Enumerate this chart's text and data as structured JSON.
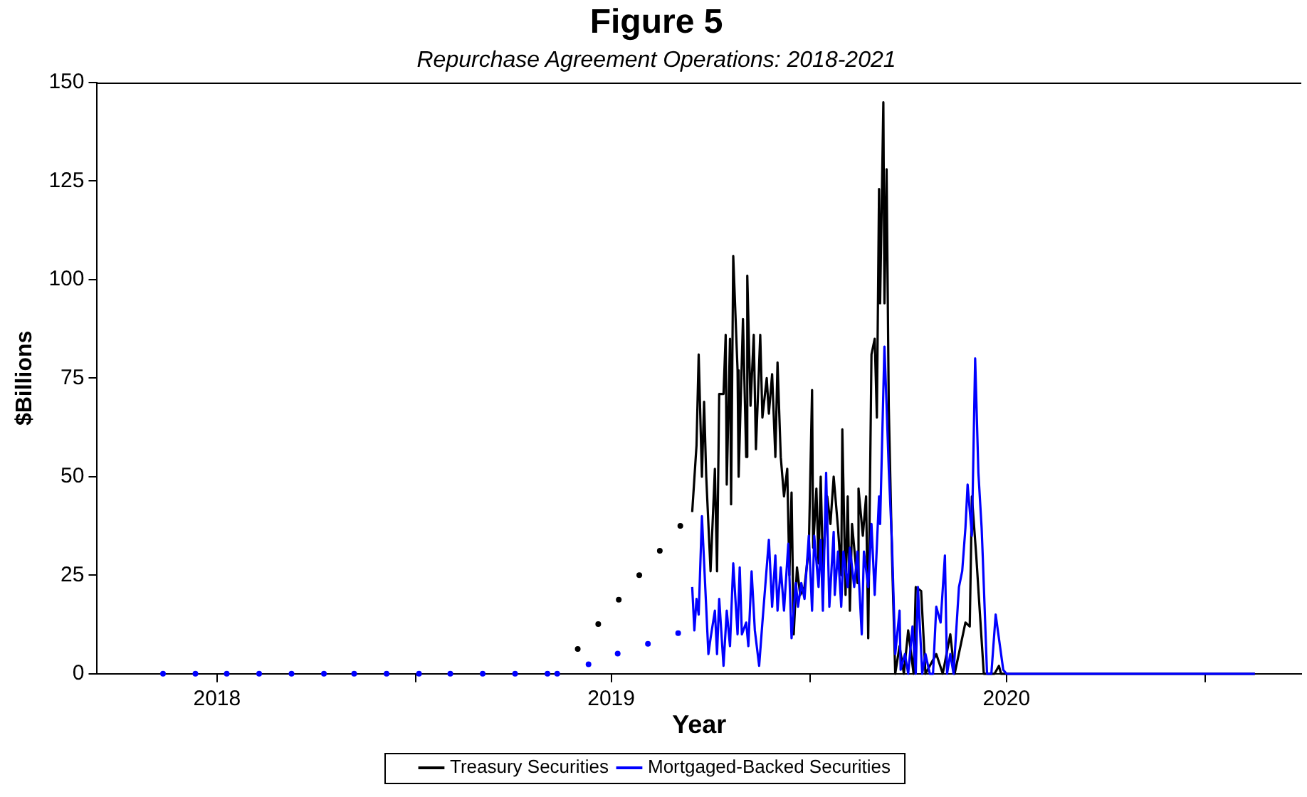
{
  "chart_data": {
    "type": "line",
    "title": "Figure 5",
    "subtitle": "Repurchase Agreement Operations: 2018-2021",
    "xlabel": "Year",
    "ylabel": "$Billions",
    "xlim": [
      "2018-03-12",
      "2021-03-31"
    ],
    "xticks": [
      {
        "value": "2018-07-01",
        "label": "2018"
      },
      {
        "value": "2019-01-01",
        "label": null
      },
      {
        "value": "2019-07-01",
        "label": "2019"
      },
      {
        "value": "2020-01-01",
        "label": null
      },
      {
        "value": "2020-07-01",
        "label": "2020"
      },
      {
        "value": "2021-01-01",
        "label": null
      }
    ],
    "ylim": [
      0,
      150
    ],
    "yticks": [
      0,
      25,
      50,
      75,
      100,
      125,
      150
    ],
    "grid": false,
    "legend": "bottom",
    "marker": "none",
    "line_style": "solid",
    "series": [
      {
        "type": "scatter",
        "marker": "circle",
        "color": "#000000",
        "x": [
          "2019-05-31",
          "2019-06-19",
          "2019-07-08",
          "2019-07-27",
          "2019-08-15",
          "2019-09-03"
        ],
        "values": [
          6.3,
          12.6,
          18.8,
          25,
          31.2,
          37.5
        ]
      },
      {
        "type": "scatter",
        "marker": "circle",
        "color": "#0000ff",
        "x": [
          "2018-05-12",
          "2018-06-11",
          "2018-07-10",
          "2018-08-09",
          "2018-09-08",
          "2018-10-08",
          "2018-11-05",
          "2018-12-05",
          "2019-01-04",
          "2019-02-02",
          "2019-03-04",
          "2019-04-03",
          "2019-05-03",
          "2019-05-12",
          "2019-06-10",
          "2019-07-07",
          "2019-08-04",
          "2019-09-01"
        ],
        "values": [
          0,
          0,
          0,
          0,
          0,
          0,
          0,
          0,
          0,
          0,
          0,
          0,
          0,
          0,
          2.4,
          5.1,
          7.6,
          10.3
        ]
      },
      {
        "name": "Treasury Securities",
        "color": "#000000",
        "x": [
          "2019-09-14",
          "2019-09-18",
          "2019-09-20",
          "2019-09-23",
          "2019-09-25",
          "2019-09-27",
          "2019-10-01",
          "2019-10-05",
          "2019-10-07",
          "2019-10-09",
          "2019-10-13",
          "2019-10-15",
          "2019-10-16",
          "2019-10-19",
          "2019-10-20",
          "2019-10-22",
          "2019-10-26",
          "2019-10-27",
          "2019-10-31",
          "2019-11-03",
          "2019-11-04",
          "2019-11-07",
          "2019-11-10",
          "2019-11-12",
          "2019-11-16",
          "2019-11-18",
          "2019-11-22",
          "2019-11-24",
          "2019-11-27",
          "2019-11-30",
          "2019-12-02",
          "2019-12-05",
          "2019-12-08",
          "2019-12-11",
          "2019-12-13",
          "2019-12-15",
          "2019-12-17",
          "2019-12-20",
          "2019-12-23",
          "2019-12-27",
          "2019-12-31",
          "2020-01-03",
          "2020-01-04",
          "2020-01-07",
          "2020-01-09",
          "2020-01-11",
          "2020-01-13",
          "2020-01-17",
          "2020-01-20",
          "2020-01-23",
          "2020-01-27",
          "2020-01-30",
          "2020-01-31",
          "2020-02-03",
          "2020-02-05",
          "2020-02-07",
          "2020-02-09",
          "2020-02-14",
          "2020-02-15",
          "2020-02-19",
          "2020-02-22",
          "2020-02-24",
          "2020-02-27",
          "2020-03-01",
          "2020-03-03",
          "2020-03-05",
          "2020-03-06",
          "2020-03-09",
          "2020-03-10",
          "2020-03-12",
          "2020-03-14",
          "2020-03-17",
          "2020-03-20",
          "2020-03-24",
          "2020-03-28",
          "2020-04-01",
          "2020-04-06",
          "2020-04-08",
          "2020-04-13",
          "2020-04-17",
          "2020-04-27",
          "2020-05-03",
          "2020-05-10",
          "2020-05-14",
          "2020-05-24",
          "2020-05-28",
          "2020-05-30",
          "2020-06-03",
          "2020-06-06",
          "2020-06-10",
          "2020-06-20",
          "2020-06-24",
          "2020-06-26",
          "2021-02-16"
        ],
        "values": [
          41,
          58,
          81,
          50,
          69,
          50,
          26,
          52,
          26,
          71,
          71,
          86,
          48,
          85,
          43,
          106,
          77,
          50,
          90,
          55,
          101,
          68,
          86,
          57,
          86,
          65,
          75,
          66,
          76,
          55,
          79,
          55,
          45,
          52,
          25,
          46,
          10,
          27,
          20,
          22,
          32,
          72,
          32,
          47,
          28,
          50,
          27,
          45,
          38,
          50,
          37,
          25,
          62,
          20,
          45,
          16,
          38,
          23,
          47,
          35,
          45,
          9,
          81,
          85,
          65,
          123,
          94,
          145,
          94,
          128,
          68,
          30,
          0,
          7,
          0,
          11,
          0,
          22,
          21,
          0,
          5,
          0,
          10,
          0,
          13,
          12,
          45,
          30,
          17,
          0,
          0,
          2,
          0,
          0
        ]
      },
      {
        "name": "Mortgaged-Backed Securities",
        "color": "#0000ff",
        "x": [
          "2019-09-14",
          "2019-09-16",
          "2019-09-18",
          "2019-09-20",
          "2019-09-23",
          "2019-09-29",
          "2019-10-01",
          "2019-10-05",
          "2019-10-07",
          "2019-10-09",
          "2019-10-13",
          "2019-10-16",
          "2019-10-19",
          "2019-10-22",
          "2019-10-26",
          "2019-10-28",
          "2019-10-30",
          "2019-11-03",
          "2019-11-05",
          "2019-11-08",
          "2019-11-11",
          "2019-11-15",
          "2019-11-18",
          "2019-11-20",
          "2019-11-24",
          "2019-11-27",
          "2019-11-30",
          "2019-12-02",
          "2019-12-05",
          "2019-12-08",
          "2019-12-12",
          "2019-12-15",
          "2019-12-19",
          "2019-12-21",
          "2019-12-24",
          "2019-12-27",
          "2019-12-31",
          "2020-01-03",
          "2020-01-05",
          "2020-01-09",
          "2020-01-11",
          "2020-01-13",
          "2020-01-16",
          "2020-01-19",
          "2020-01-23",
          "2020-01-24",
          "2020-01-27",
          "2020-01-30",
          "2020-02-01",
          "2020-02-05",
          "2020-02-07",
          "2020-02-11",
          "2020-02-14",
          "2020-02-18",
          "2020-02-20",
          "2020-02-24",
          "2020-02-27",
          "2020-03-01",
          "2020-03-05",
          "2020-03-06",
          "2020-03-10",
          "2020-03-12",
          "2020-03-14",
          "2020-03-17",
          "2020-03-20",
          "2020-03-24",
          "2020-03-25",
          "2020-03-29",
          "2020-04-01",
          "2020-04-05",
          "2020-04-08",
          "2020-04-10",
          "2020-04-14",
          "2020-04-17",
          "2020-04-21",
          "2020-04-24",
          "2020-04-27",
          "2020-05-01",
          "2020-05-05",
          "2020-05-07",
          "2020-05-10",
          "2020-05-13",
          "2020-05-18",
          "2020-05-21",
          "2020-05-24",
          "2020-05-26",
          "2020-05-30",
          "2020-06-02",
          "2020-06-05",
          "2020-06-08",
          "2020-06-09",
          "2020-06-13",
          "2020-06-17",
          "2020-06-21",
          "2020-06-25",
          "2020-06-28",
          "2020-07-01",
          "2021-02-16"
        ],
        "values": [
          22,
          11,
          19,
          15,
          40,
          5,
          9,
          16,
          5,
          19,
          2,
          16,
          7,
          28,
          10,
          27,
          10,
          13,
          7,
          26,
          11,
          2,
          13,
          20,
          34,
          17,
          30,
          16,
          27,
          16,
          33,
          9,
          23,
          17,
          23,
          19,
          35,
          16,
          35,
          22,
          34,
          16,
          51,
          17,
          36,
          20,
          31,
          17,
          31,
          22,
          32,
          22,
          31,
          10,
          31,
          22,
          38,
          20,
          45,
          38,
          83,
          68,
          52,
          33,
          5,
          16,
          1,
          5,
          0,
          12,
          0,
          22,
          0,
          5,
          0,
          0,
          17,
          13,
          30,
          0,
          5,
          0,
          22,
          26,
          37,
          48,
          35,
          80,
          51,
          37,
          30,
          0,
          0,
          15,
          7,
          1,
          0,
          0
        ]
      }
    ]
  }
}
